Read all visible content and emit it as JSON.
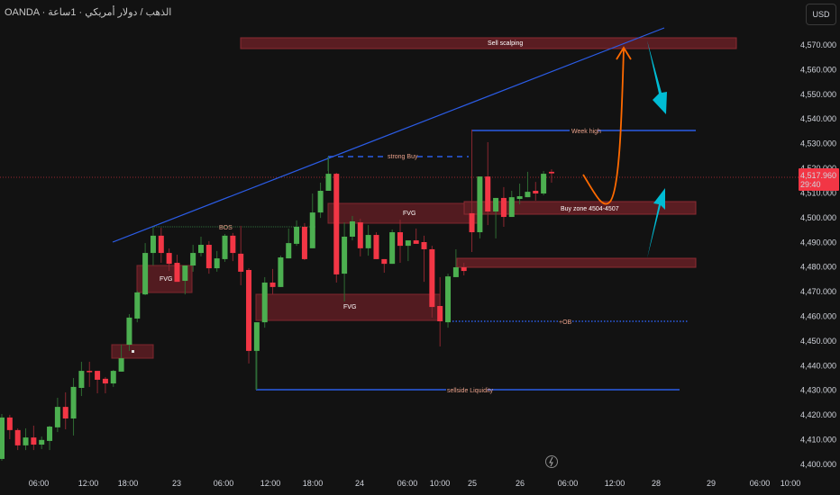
{
  "header": {
    "title": "OANDA · الذهب / دولار أمريكي · 1ساعة",
    "currency_button": "USD"
  },
  "colors": {
    "background": "#121212",
    "bull": "#4caf50",
    "bear": "#f23645",
    "zone_fill": "#5a1d22",
    "zone_border": "#8c2a32",
    "trend_blue": "#2b5ce6",
    "projection_orange": "#ff6a00",
    "arrow_cyan": "#00bcd4",
    "annotation_text": "#e8a08a"
  },
  "price_axis": {
    "labels": [
      "4,570.000",
      "4,560.000",
      "4,550.000",
      "4,540.000",
      "4,530.000",
      "4,520.000",
      "4,510.000",
      "4,500.000",
      "4,490.000",
      "4,480.000",
      "4,470.000",
      "4,460.000",
      "4,450.000",
      "4,440.000",
      "4,430.000",
      "4,420.000",
      "4,410.000",
      "4,400.000"
    ],
    "current_price": "4,517.960",
    "countdown": "29:40"
  },
  "time_axis": {
    "labels": [
      "06:00",
      "12:00",
      "18:00",
      "23",
      "06:00",
      "12:00",
      "18:00",
      "24",
      "06:00",
      "10:00",
      "25",
      "26",
      "06:00",
      "12:00",
      "28",
      "29",
      "06:00",
      "10:00"
    ]
  },
  "annotations": {
    "sell_zone": "Sell scalping",
    "week_high": "Week high",
    "strong_buy": "strong Buy",
    "buy_zone": "Buy zone 4504-4507",
    "fvg": "FVG",
    "bos": "BOS",
    "ob": "+OB",
    "sellside": "sellside Liquidity"
  },
  "icons": {
    "replay": "lightning-icon"
  },
  "chart_data": {
    "type": "candlestick",
    "symbol": "OANDA",
    "interval": "1h",
    "ylim": [
      4400,
      4570
    ],
    "last_price": 4517.96,
    "candles": [
      [
        4402.2,
        4420.4,
        4401.5,
        4419.0
      ],
      [
        4419.0,
        4420.1,
        4410.2,
        4413.9
      ],
      [
        4413.9,
        4414.6,
        4405.8,
        4407.7
      ],
      [
        4407.7,
        4414.6,
        4405.8,
        4410.9
      ],
      [
        4410.9,
        4415.7,
        4405.8,
        4408.0
      ],
      [
        4408.0,
        4411.3,
        4406.2,
        4409.9
      ],
      [
        4409.5,
        4415.7,
        4405.8,
        4415.3
      ],
      [
        4415.0,
        4427.0,
        4413.1,
        4423.3
      ],
      [
        4423.3,
        4429.2,
        4414.2,
        4418.6
      ],
      [
        4418.6,
        4435.0,
        4411.7,
        4431.4
      ],
      [
        4431.0,
        4441.6,
        4427.7,
        4437.9
      ],
      [
        4437.9,
        4441.6,
        4431.4,
        4437.6
      ],
      [
        4437.9,
        4437.9,
        4428.8,
        4434.3
      ],
      [
        4434.7,
        4435.4,
        4428.8,
        4432.8
      ],
      [
        4432.8,
        4438.3,
        4431.4,
        4437.9
      ],
      [
        4437.6,
        4448.5,
        4437.6,
        4443.0
      ],
      [
        4448.5,
        4460.9,
        4446.0,
        4459.5
      ],
      [
        4459.1,
        4470.4,
        4457.6,
        4469.7
      ],
      [
        4468.9,
        4489.7,
        4468.6,
        4485.7
      ],
      [
        4485.7,
        4496.3,
        4480.6,
        4492.7
      ],
      [
        4492.7,
        4495.9,
        4481.7,
        4485.7
      ],
      [
        4485.7,
        4487.5,
        4478.4,
        4481.3
      ],
      [
        4481.7,
        4485.0,
        4474.0,
        4474.0
      ],
      [
        4474.4,
        4480.6,
        4468.9,
        4480.6
      ],
      [
        4480.6,
        4489.0,
        4478.1,
        4485.7
      ],
      [
        4485.7,
        4492.3,
        4484.3,
        4489.0
      ],
      [
        4489.0,
        4490.5,
        4477.3,
        4479.5
      ],
      [
        4479.5,
        4486.5,
        4478.1,
        4483.5
      ],
      [
        4483.2,
        4493.4,
        4482.1,
        4492.7
      ],
      [
        4492.7,
        4493.8,
        4482.4,
        4485.7
      ],
      [
        4485.4,
        4496.7,
        4472.6,
        4478.1
      ],
      [
        4478.8,
        4479.5,
        4440.9,
        4446.0
      ],
      [
        4446.0,
        4457.6,
        4430.3,
        4457.6
      ],
      [
        4457.6,
        4475.9,
        4455.4,
        4473.7
      ],
      [
        4473.7,
        4479.2,
        4468.9,
        4471.9
      ],
      [
        4471.9,
        4484.6,
        4471.9,
        4483.9
      ],
      [
        4483.5,
        4495.6,
        4483.5,
        4489.7
      ],
      [
        4489.4,
        4498.9,
        4488.6,
        4496.3
      ],
      [
        4496.3,
        4497.8,
        4482.8,
        4483.2
      ],
      [
        4487.6,
        4509.8,
        4487.6,
        4502.1
      ],
      [
        4502.1,
        4514.2,
        4499.9,
        4510.9
      ],
      [
        4510.9,
        4524.4,
        4510.9,
        4517.8
      ],
      [
        4517.8,
        4518.2,
        4473.7,
        4477.0
      ],
      [
        4477.3,
        4498.1,
        4466.0,
        4492.3
      ],
      [
        4492.3,
        4500.7,
        4490.8,
        4498.5
      ],
      [
        4498.1,
        4499.6,
        4484.3,
        4487.6
      ],
      [
        4487.6,
        4497.0,
        4484.6,
        4493.0
      ],
      [
        4493.0,
        4494.1,
        4483.2,
        4483.2
      ],
      [
        4483.2,
        4483.2,
        4477.7,
        4481.3
      ],
      [
        4481.3,
        4495.2,
        4481.3,
        4494.1
      ],
      [
        4494.1,
        4499.2,
        4481.7,
        4488.6
      ],
      [
        4488.6,
        4490.8,
        4482.4,
        4490.8
      ],
      [
        4490.8,
        4495.6,
        4489.4,
        4489.4
      ],
      [
        4490.1,
        4492.7,
        4474.0,
        4487.2
      ],
      [
        4487.2,
        4488.6,
        4459.5,
        4463.8
      ],
      [
        4464.2,
        4475.9,
        4447.8,
        4458.0
      ],
      [
        4457.6,
        4477.3,
        4455.4,
        4476.2
      ],
      [
        4475.9,
        4487.2,
        4475.9,
        4479.9
      ],
      [
        4479.9,
        4481.7,
        4476.6,
        4478.4
      ],
      [
        4501.8,
        4535.7,
        4486.1,
        4494.1
      ],
      [
        4494.1,
        4516.7,
        4491.6,
        4516.7
      ],
      [
        4516.7,
        4530.6,
        4497.0,
        4502.5
      ],
      [
        4502.5,
        4508.0,
        4491.6,
        4508.0
      ],
      [
        4508.0,
        4512.4,
        4496.3,
        4500.3
      ],
      [
        4500.3,
        4510.9,
        4500.3,
        4508.3
      ],
      [
        4507.6,
        4513.8,
        4505.4,
        4508.7
      ],
      [
        4508.3,
        4518.6,
        4508.3,
        4510.5
      ],
      [
        4510.9,
        4514.5,
        4506.9,
        4509.8
      ],
      [
        4509.8,
        4518.9,
        4509.1,
        4517.8
      ],
      [
        4518.6,
        4519.6,
        4514.2,
        4517.96
      ]
    ],
    "candle_format": [
      "open",
      "high",
      "low",
      "close"
    ]
  }
}
